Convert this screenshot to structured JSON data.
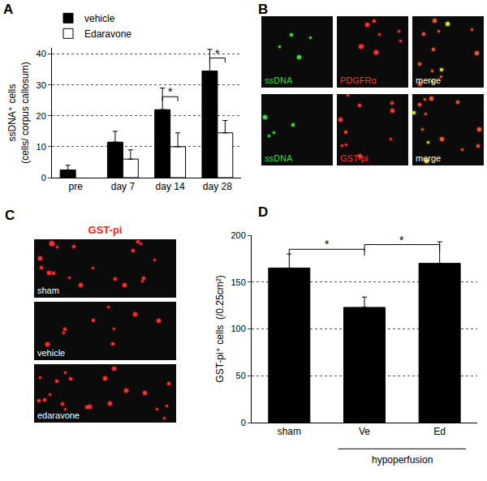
{
  "chart_data": [
    {
      "panel": "A",
      "type": "bar",
      "categories": [
        "pre",
        "day 7",
        "day 14",
        "day 28"
      ],
      "series": [
        {
          "name": "vehicle",
          "color": "#000000",
          "values": [
            2.5,
            11.5,
            22,
            34.5
          ],
          "errors": [
            1.5,
            3.5,
            7,
            7
          ]
        },
        {
          "name": "Edaravone",
          "color": "#ffffff",
          "values": [
            null,
            6,
            10,
            14.5
          ],
          "errors": [
            null,
            3,
            4.5,
            4
          ]
        }
      ],
      "y_label": [
        "ssDNA⁺ cells",
        "(cells/ corpus callosum)"
      ],
      "ylim": [
        0,
        42
      ],
      "yticks": [
        0,
        10,
        20,
        30,
        40
      ],
      "grid": true,
      "legend": "top left",
      "significance": [
        {
          "category": "day 14",
          "label": "*"
        },
        {
          "category": "day 28",
          "label": "*"
        }
      ]
    },
    {
      "panel": "D",
      "type": "bar",
      "categories": [
        "sham",
        "Ve",
        "Ed"
      ],
      "values": [
        165,
        123,
        170
      ],
      "errors": [
        15,
        11,
        23
      ],
      "color": "#000000",
      "y_label": [
        "GST-pi⁺ cells  (/0.25cm²)"
      ],
      "ylim": [
        0,
        200
      ],
      "yticks": [
        0,
        50,
        100,
        150,
        200
      ],
      "grid": true,
      "significance": [
        {
          "between": [
            "sham",
            "Ve"
          ],
          "label": "*"
        },
        {
          "between": [
            "Ve",
            "Ed"
          ],
          "label": "*"
        }
      ],
      "group": {
        "label": "hypoperfusion",
        "categories": [
          "Ve",
          "Ed"
        ]
      }
    }
  ],
  "images": [
    {
      "panel": "B",
      "rows": [
        [
          {
            "label": "ssDNA",
            "color": "#33dd33"
          },
          {
            "label": "PDGFRα",
            "color": "#ff3030"
          },
          {
            "label": "merge",
            "color": "#ffffff"
          }
        ],
        [
          {
            "label": "ssDNA",
            "color": "#33dd33"
          },
          {
            "label": "GST-pi",
            "color": "#ff3030"
          },
          {
            "label": "merge",
            "color": "#ffffff"
          }
        ]
      ]
    },
    {
      "panel": "C",
      "title": "GST-pi",
      "title_color": "#ff2020",
      "cells": [
        "sham",
        "vehicle",
        "edaravone"
      ],
      "label_color": "#ffffff"
    }
  ]
}
